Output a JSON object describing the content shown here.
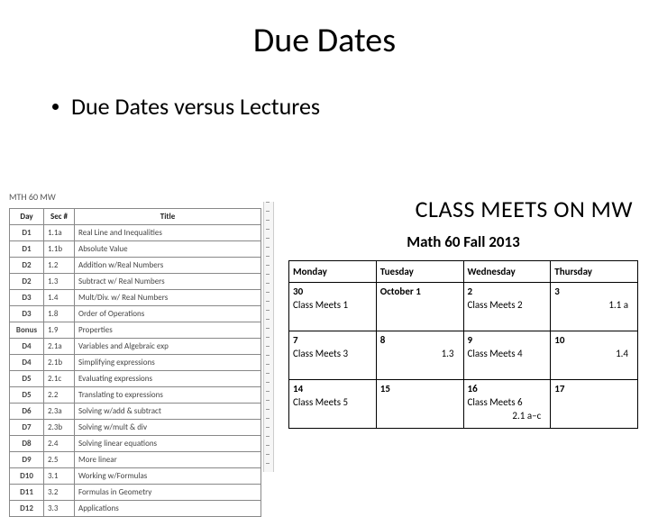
{
  "title": "Due Dates",
  "bullet": "Due Dates versus Lectures",
  "course_label": "MTH 60 MW",
  "sec_table": {
    "headers": [
      "Day",
      "Sec #",
      "Title"
    ],
    "rows": [
      [
        "D1",
        "1.1a",
        "Real Line and Inequalities"
      ],
      [
        "D1",
        "1.1b",
        "Absolute Value"
      ],
      [
        "D2",
        "1.2",
        "Addition w/Real Numbers"
      ],
      [
        "D2",
        "1.3",
        "Subtract w/ Real Numbers"
      ],
      [
        "D3",
        "1.4",
        "Mult/Div. w/ Real Numbers"
      ],
      [
        "D3",
        "1.8",
        "Order of Operations"
      ],
      [
        "Bonus",
        "1.9",
        "Properties"
      ],
      [
        "D4",
        "2.1a",
        "Variables and Algebraic exp"
      ],
      [
        "D4",
        "2.1b",
        "Simplifying expressions"
      ],
      [
        "D5",
        "2.1c",
        "Evaluating expressions"
      ],
      [
        "D5",
        "2.2",
        "Translating to expressions"
      ],
      [
        "D6",
        "2.3a",
        "Solving w/add & subtract"
      ],
      [
        "D7",
        "2.3b",
        "Solving w/mult & div"
      ],
      [
        "D8",
        "2.4",
        "Solving linear equations"
      ],
      [
        "D9",
        "2.5",
        "More linear"
      ],
      [
        "D10",
        "3.1",
        "Working w/Formulas"
      ],
      [
        "D11",
        "3.2",
        "Formulas in Geometry"
      ],
      [
        "D12",
        "3.3",
        "Applications"
      ]
    ]
  },
  "right": {
    "class_meets": "CLASS MEETS ON MW",
    "course_term": "Math 60 Fall 2013",
    "cal_headers": [
      "Monday",
      "Tuesday",
      "Wednesday",
      "Thursday"
    ],
    "weeks": [
      [
        {
          "date": "30",
          "line2": "Class Meets 1",
          "line3": ""
        },
        {
          "date": "October 1",
          "line2": "",
          "line3": ""
        },
        {
          "date": "2",
          "line2": "Class Meets 2",
          "line3": ""
        },
        {
          "date": "3",
          "line2": "",
          "line3": "1.1 a"
        }
      ],
      [
        {
          "date": "7",
          "line2": "Class Meets 3",
          "line3": ""
        },
        {
          "date": "8",
          "line2": "",
          "line3": "1.3"
        },
        {
          "date": "9",
          "line2": "Class Meets 4",
          "line3": ""
        },
        {
          "date": "10",
          "line2": "",
          "line3": "1.4"
        }
      ],
      [
        {
          "date": "14",
          "line2": "Class Meets 5",
          "line3": ""
        },
        {
          "date": "15",
          "line2": "",
          "line3": ""
        },
        {
          "date": "16",
          "line2": "Class Meets 6",
          "line3": "2.1 a–c"
        },
        {
          "date": "17",
          "line2": "",
          "line3": ""
        }
      ]
    ]
  }
}
